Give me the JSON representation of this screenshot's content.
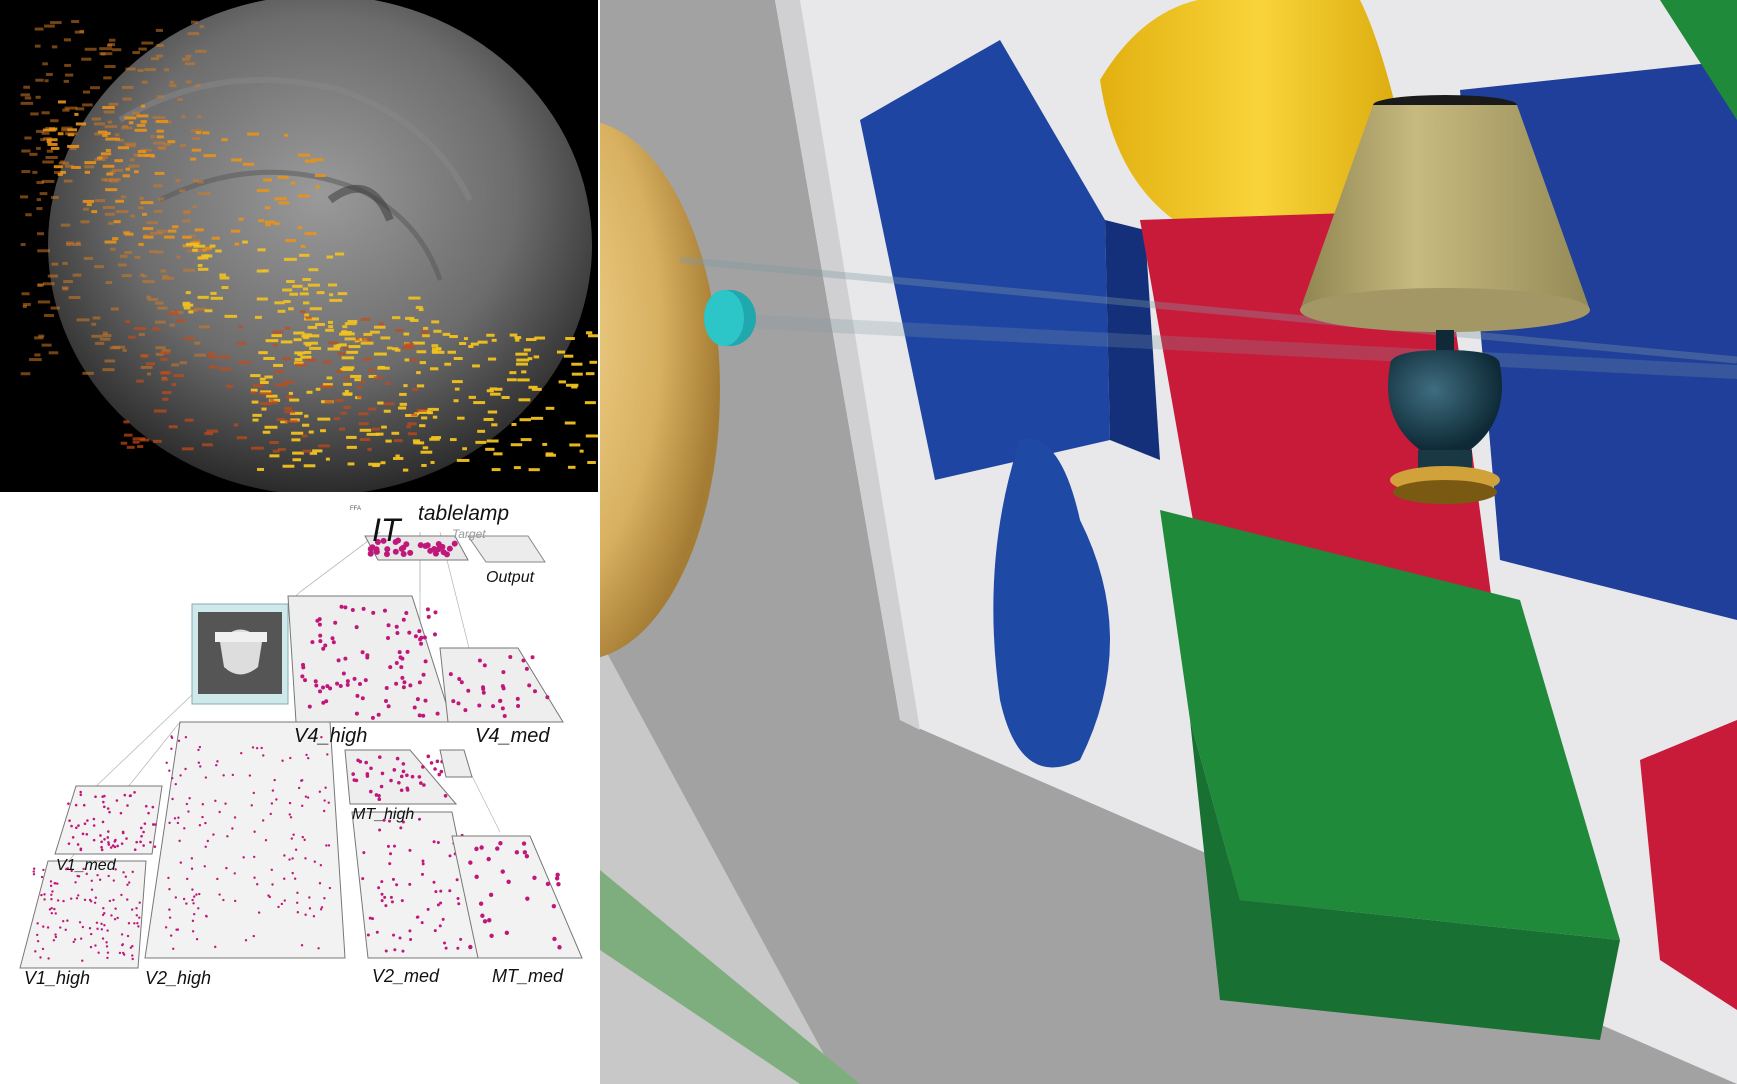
{
  "network": {
    "labels": {
      "tablelamp": "tablelamp",
      "target": "Target",
      "output": "Output",
      "it": "IT",
      "v4_high": "V4_high",
      "v4_med": "V4_med",
      "mt_high": "MT_high",
      "v1_med": "V1_med",
      "v1_high": "V1_high",
      "v2_high": "V2_high",
      "v2_med": "V2_med",
      "mt_med": "MT_med"
    }
  },
  "colors": {
    "unit_active": "#c0187a",
    "brain_orange": "#e8921a",
    "brain_yellow": "#f2c21e",
    "scene_blue": "#1f45a3",
    "scene_red": "#c81b3a",
    "scene_green": "#1f8a3a",
    "scene_yellow": "#f2c520",
    "lamp_shade": "#b9ac70",
    "lamp_base": "#1f4452"
  }
}
